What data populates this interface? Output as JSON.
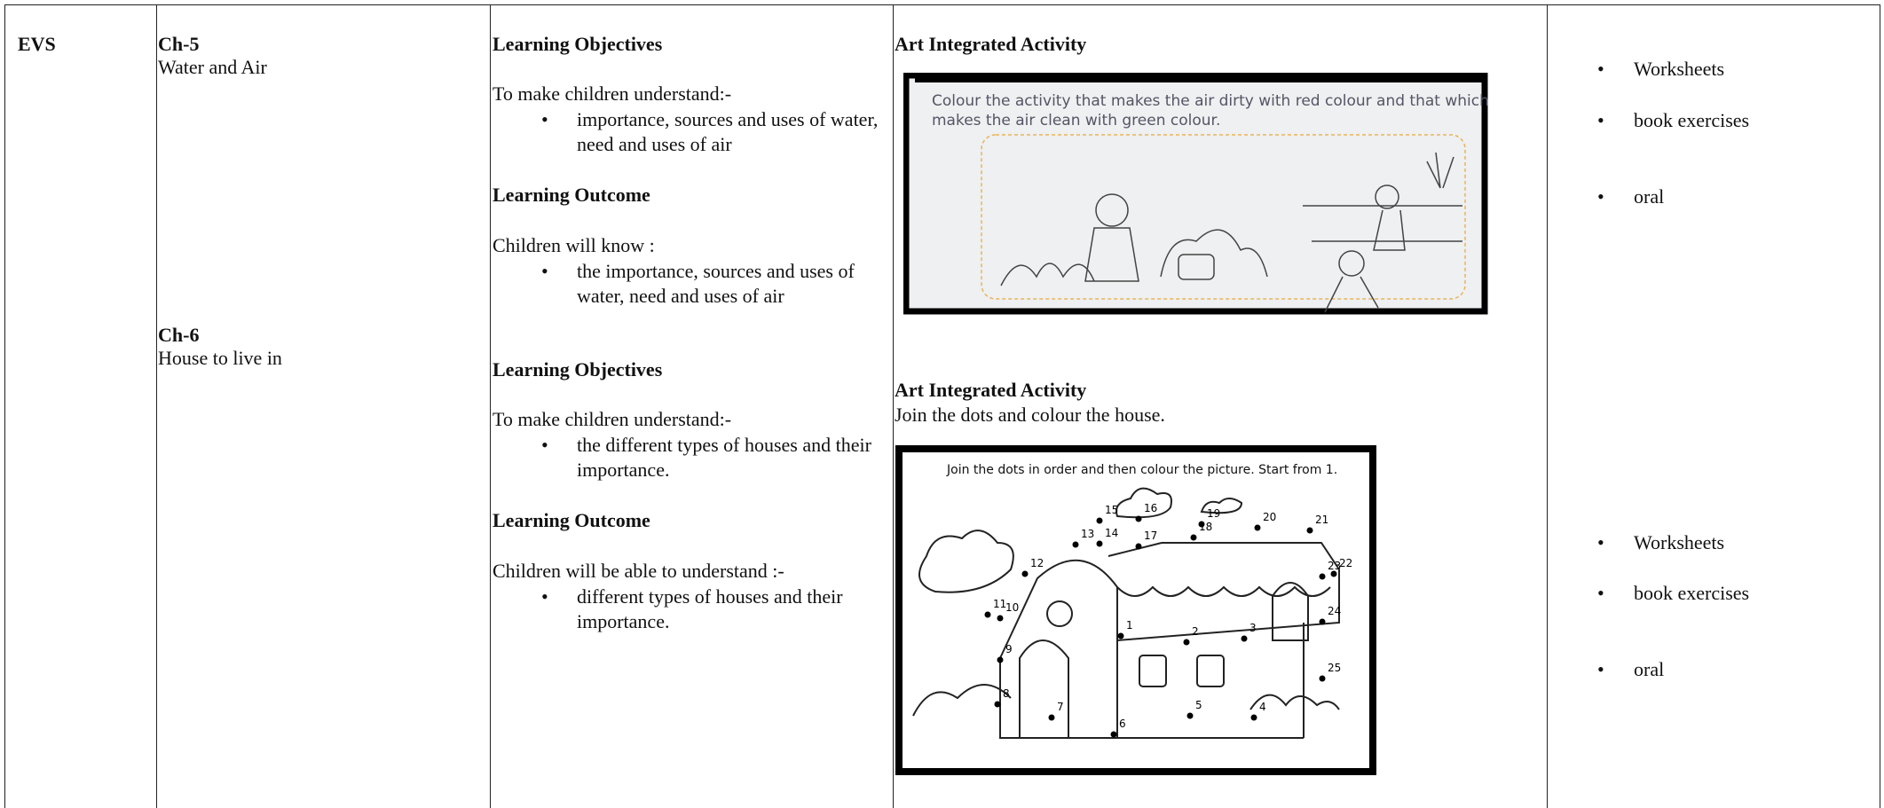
{
  "subject": "EVS",
  "chapters": [
    {
      "number": "Ch-5",
      "title": "Water and Air"
    },
    {
      "number": "Ch-6",
      "title": "House to live in"
    }
  ],
  "sections": [
    {
      "objectives_heading": "Learning Objectives",
      "objectives_intro": "To make children understand:-",
      "objectives_items": [
        "importance, sources and uses of water, need and uses of air"
      ],
      "outcome_heading": "Learning Outcome",
      "outcome_intro": "Children will know :",
      "outcome_items": [
        "the importance, sources and uses of water, need and uses of air"
      ]
    },
    {
      "objectives_heading": "Learning Objectives",
      "objectives_intro": "To make children understand:-",
      "objectives_items": [
        "the different types of houses and their importance."
      ],
      "outcome_heading": "Learning Outcome",
      "outcome_intro": "Children will be able to understand :-",
      "outcome_items": [
        "different types of houses and their importance."
      ]
    }
  ],
  "activities": [
    {
      "heading": "Art Integrated Activity",
      "image_text": [
        "Colour the activity that makes the air dirty with red colour and that which",
        "makes the air clean with green colour."
      ]
    },
    {
      "heading": "Art Integrated Activity",
      "text": "Join the dots and colour the house.",
      "image_text": [
        "Join the dots in order and then colour the picture. Start from 1."
      ],
      "dots": [
        "1",
        "2",
        "3",
        "4",
        "5",
        "6",
        "7",
        "8",
        "9",
        "10",
        "11",
        "12",
        "13",
        "14",
        "15",
        "16",
        "17",
        "18",
        "19",
        "20",
        "21",
        "22",
        "23",
        "24",
        "25"
      ]
    }
  ],
  "resources": [
    [
      "Worksheets",
      "book exercises",
      "oral"
    ],
    [
      "Worksheets",
      "book exercises",
      "oral"
    ]
  ]
}
